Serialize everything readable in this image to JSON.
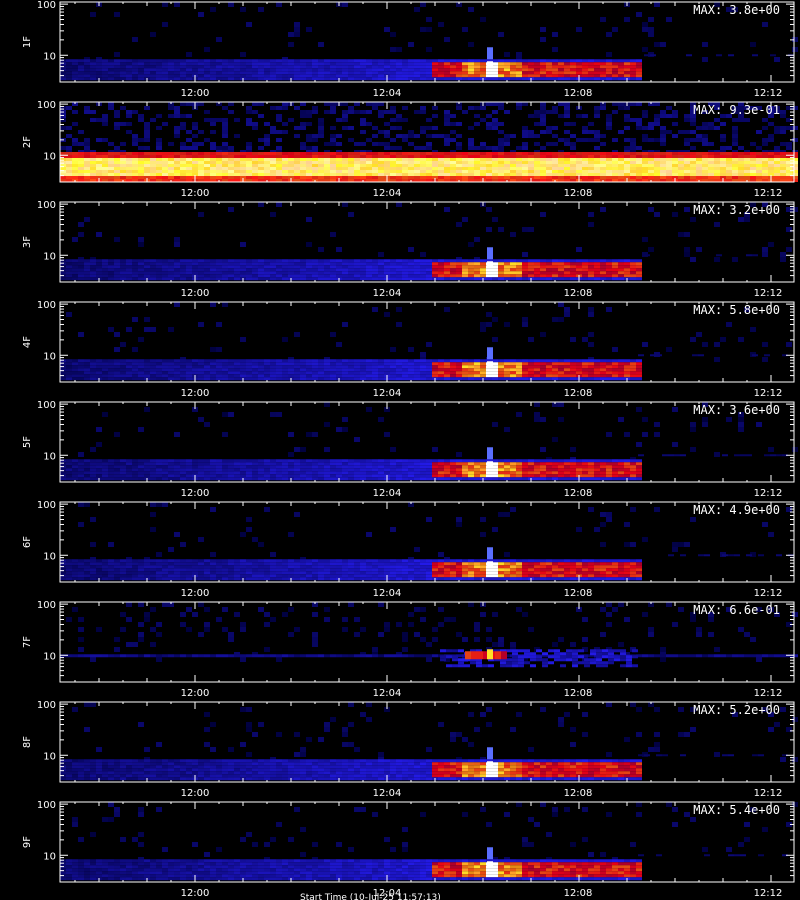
{
  "chart_data": {
    "type": "heatmap",
    "colormap": "blue-red-yellow-white on black",
    "log_y": true,
    "x_tick_labels": [
      "12:00",
      "12:04",
      "12:08",
      "12:12"
    ],
    "y_tick_labels": [
      "10",
      "100"
    ],
    "footer": "Start Time (10-Jul-25 11:57:13)",
    "panels": [
      {
        "label": "1F",
        "max_label": "MAX: 3.8e+00",
        "pattern": "burst"
      },
      {
        "label": "2F",
        "max_label": "MAX: 9.3e-01",
        "pattern": "saturated"
      },
      {
        "label": "3F",
        "max_label": "MAX: 3.2e+00",
        "pattern": "burst"
      },
      {
        "label": "4F",
        "max_label": "MAX: 5.8e+00",
        "pattern": "burst"
      },
      {
        "label": "5F",
        "max_label": "MAX: 3.6e+00",
        "pattern": "burst"
      },
      {
        "label": "6F",
        "max_label": "MAX: 4.9e+00",
        "pattern": "burst"
      },
      {
        "label": "7F",
        "max_label": "MAX: 6.6e-01",
        "pattern": "faint"
      },
      {
        "label": "8F",
        "max_label": "MAX: 5.2e+00",
        "pattern": "burst"
      },
      {
        "label": "9F",
        "max_label": "MAX: 5.4e+00",
        "pattern": "burst"
      }
    ]
  }
}
